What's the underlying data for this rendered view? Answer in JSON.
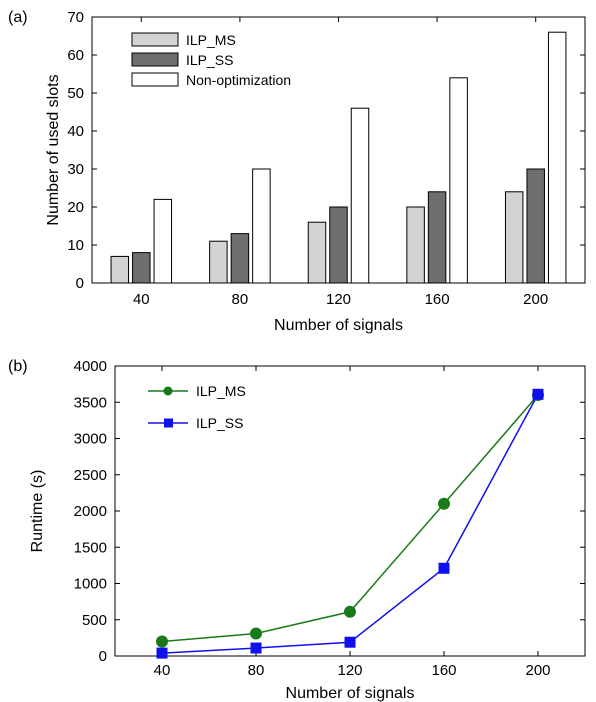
{
  "chart_data": [
    {
      "type": "bar",
      "panel_label": "(a)",
      "categories": [
        "40",
        "80",
        "120",
        "160",
        "200"
      ],
      "series": [
        {
          "name": "ILP_MS",
          "color": "#d3d3d3",
          "values": [
            7,
            11,
            16,
            20,
            24
          ]
        },
        {
          "name": "ILP_SS",
          "color": "#6e6e6e",
          "values": [
            8,
            13,
            20,
            24,
            30
          ]
        },
        {
          "name": "Non-optimization",
          "color": "#ffffff",
          "values": [
            22,
            30,
            46,
            54,
            66
          ]
        }
      ],
      "xlabel": "Number of signals",
      "ylabel": "Number of used slots",
      "ylim": [
        0,
        70
      ],
      "yticks": [
        0,
        10,
        20,
        30,
        40,
        50,
        60,
        70
      ],
      "legend_position": "top-left",
      "grid": false
    },
    {
      "type": "line",
      "panel_label": "(b)",
      "x": [
        40,
        80,
        120,
        160,
        200
      ],
      "series": [
        {
          "name": "ILP_MS",
          "color": "#1a7a1a",
          "marker": "circle",
          "values": [
            200,
            310,
            610,
            2100,
            3600
          ]
        },
        {
          "name": "ILP_SS",
          "color": "#1010ee",
          "marker": "square",
          "values": [
            40,
            110,
            190,
            1210,
            3610
          ]
        }
      ],
      "xlabel": "Number of signals",
      "ylabel": "Runtime (s)",
      "xlim": [
        20,
        220
      ],
      "ylim": [
        0,
        4000
      ],
      "xticks": [
        40,
        80,
        120,
        160,
        200
      ],
      "yticks": [
        0,
        500,
        1000,
        1500,
        2000,
        2500,
        3000,
        3500,
        4000
      ],
      "legend_position": "top-left",
      "grid": false
    }
  ]
}
